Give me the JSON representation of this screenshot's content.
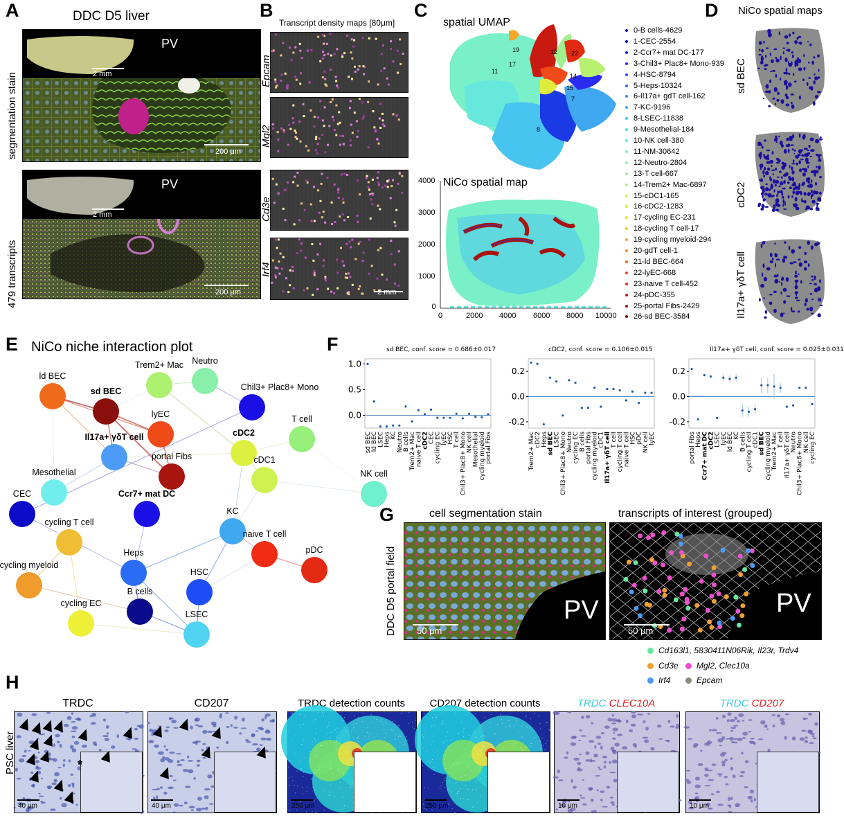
{
  "panels": {
    "A": {
      "label": "A",
      "title": "DDC D5 liver",
      "row1_label": "segmentation stain",
      "row2_label": "479 transcripts",
      "inset_scale": "2 mm",
      "main_scale": "200 μm",
      "pv": "PV"
    },
    "B": {
      "label": "B",
      "title": "Transcript density maps [80μm]",
      "genes": [
        "Epcam",
        "Mgl2",
        "Cd3e",
        "Irf4"
      ],
      "scale": "2 mm"
    },
    "C": {
      "label": "C",
      "umap_title": "spatial UMAP",
      "map_title": "NiCo spatial map",
      "yticks": [
        "4000",
        "3000",
        "2000",
        "1000",
        "0"
      ],
      "xticks": [
        "0",
        "2000",
        "4000",
        "6000",
        "8000",
        "10000"
      ],
      "cluster_numbers": [
        "19",
        "11",
        "17",
        "8",
        "12",
        "22",
        "7",
        "14",
        "15"
      ],
      "legend": [
        {
          "label": "0-B cells-4629",
          "color": "#0a0a8c"
        },
        {
          "label": "1-CEC-2554",
          "color": "#0d0dbd"
        },
        {
          "label": "2-Ccr7+ mat DC-177",
          "color": "#1a1ae6"
        },
        {
          "label": "3-Chil3+ Plac8+ Mono-939",
          "color": "#2a2af0"
        },
        {
          "label": "4-HSC-8794",
          "color": "#1e4cf5"
        },
        {
          "label": "5-Heps-10324",
          "color": "#2a6bf5"
        },
        {
          "label": "6-Il17a+ gdT cell-162",
          "color": "#3a8cf5"
        },
        {
          "label": "7-KC-9196",
          "color": "#40a8f0"
        },
        {
          "label": "8-LSEC-11838",
          "color": "#48c4f0"
        },
        {
          "label": "9-Mesothelial-184",
          "color": "#55dced"
        },
        {
          "label": "10-NK cell-380",
          "color": "#66e8dc"
        },
        {
          "label": "11-NM-30642",
          "color": "#7af0c8"
        },
        {
          "label": "12-Neutro-2804",
          "color": "#8ef2b0"
        },
        {
          "label": "13-T cell-667",
          "color": "#a0f090"
        },
        {
          "label": "14-Trem2+ Mac-6897",
          "color": "#b8f070"
        },
        {
          "label": "15-cDC1-165",
          "color": "#cdf050"
        },
        {
          "label": "16-cDC2-1283",
          "color": "#e0ec3c"
        },
        {
          "label": "17-cycling EC-231",
          "color": "#eee030"
        },
        {
          "label": "18-cycling T cell-17",
          "color": "#f2c830"
        },
        {
          "label": "19-cycling myeloid-294",
          "color": "#f4a828"
        },
        {
          "label": "20-gdT cell-1",
          "color": "#f48a22"
        },
        {
          "label": "21-ld BEC-664",
          "color": "#f0681c"
        },
        {
          "label": "22-lyEC-668",
          "color": "#ec4a16"
        },
        {
          "label": "23-naive T cell-452",
          "color": "#e02a12"
        },
        {
          "label": "24-pDC-355",
          "color": "#c81a10"
        },
        {
          "label": "25-portal Fibs-2429",
          "color": "#a8140e"
        },
        {
          "label": "26-sd BEC-3584",
          "color": "#7a0a0a"
        }
      ]
    },
    "D": {
      "label": "D",
      "title": "NiCo spatial maps",
      "rows": [
        "sd BEC",
        "cDC2",
        "Il17a+ γδT cell"
      ]
    },
    "E": {
      "label": "E",
      "title": "NiCo niche interaction plot",
      "nodes": [
        {
          "name": "ld BEC",
          "color": "#f06a1c",
          "bold": false
        },
        {
          "name": "sd BEC",
          "color": "#8a0f0c",
          "bold": true
        },
        {
          "name": "Trem2+ Mac",
          "color": "#aef070",
          "bold": false
        },
        {
          "name": "Neutro",
          "color": "#88f0a8",
          "bold": false
        },
        {
          "name": "Chil3+ Plac8+ Mono",
          "color": "#1a10e6",
          "bold": false
        },
        {
          "name": "lyEC",
          "color": "#f04a18",
          "bold": false
        },
        {
          "name": "Il17a+ γδT cell",
          "color": "#4c9cf5",
          "bold": true
        },
        {
          "name": "cDC2",
          "color": "#dcf040",
          "bold": true
        },
        {
          "name": "T cell",
          "color": "#98f07c",
          "bold": false
        },
        {
          "name": "portal Fibs",
          "color": "#a8140e",
          "bold": false
        },
        {
          "name": "Mesothelial",
          "color": "#70eded",
          "bold": false
        },
        {
          "name": "cDC1",
          "color": "#cef250",
          "bold": false
        },
        {
          "name": "CEC",
          "color": "#0c0cc8",
          "bold": false
        },
        {
          "name": "NK cell",
          "color": "#70f0cc",
          "bold": false
        },
        {
          "name": "Ccr7+ mat DC",
          "color": "#1a10e6",
          "bold": true
        },
        {
          "name": "KC",
          "color": "#40a8f0",
          "bold": false
        },
        {
          "name": "naive T cell",
          "color": "#f02c12",
          "bold": false
        },
        {
          "name": "cycling T cell",
          "color": "#f0be34",
          "bold": false
        },
        {
          "name": "pDC",
          "color": "#e42a12",
          "bold": false
        },
        {
          "name": "Heps",
          "color": "#2a6cf4",
          "bold": false
        },
        {
          "name": "cycling myeloid",
          "color": "#f09c2c",
          "bold": false
        },
        {
          "name": "HSC",
          "color": "#1e4cf5",
          "bold": false
        },
        {
          "name": "B cells",
          "color": "#0a0a8c",
          "bold": false
        },
        {
          "name": "cycling EC",
          "color": "#eef038",
          "bold": false
        },
        {
          "name": "LSEC",
          "color": "#50d4f2",
          "bold": false
        }
      ]
    },
    "F": {
      "label": "F"
    },
    "G": {
      "label": "G",
      "row_label": "DDC D5 portal field",
      "left_title": "cell segmentation stain",
      "right_title": "transcripts of interest (grouped)",
      "scale": "50 μm",
      "pv": "PV",
      "legend": [
        {
          "text": "Cd163l1, 5830411N06Rik, Il23r, Trdv4",
          "color": "#66e8a0"
        },
        {
          "text": "Cd3e",
          "color": "#f0a030"
        },
        {
          "text": "Mgl2, Clec10a",
          "color": "#f050d0"
        },
        {
          "text": "Irf4",
          "color": "#4c9cf5"
        },
        {
          "text": "Epcam",
          "color": "#8a8a78"
        }
      ]
    },
    "H": {
      "label": "H",
      "row_label": "PSC liver",
      "titles": [
        "TRDC",
        "CD207",
        "TRDC detection counts",
        "CD207 detection counts"
      ],
      "ish1": {
        "a": "TRDC",
        "b": "CLEC10A"
      },
      "ish2": {
        "a": "TRDC",
        "b": "CD207"
      },
      "scales": [
        "40 μm",
        "40 μm",
        "250 μm",
        "250 μm",
        "10 μm",
        "10 μm"
      ],
      "star": "*"
    }
  },
  "chart_data": [
    {
      "type": "scatter",
      "title": "sd BEC, conf. score = 0.686±0.017",
      "ylim": [
        -0.25,
        1.1
      ],
      "yticks": [
        1.0,
        0.5,
        0.0
      ],
      "categories": [
        "sd BEC",
        "ld BEC",
        "LSEC",
        "Heps",
        "KC",
        "Neutro",
        "B cells",
        "Trem2+ Mac",
        "naive T cell",
        "cDC2",
        "CEC",
        "cycling EC",
        "lyEC",
        "HSC",
        "T cell",
        "Chil3+ Plac8+ Mono",
        "NK cell",
        "Mesothelial",
        "cycling myeloid",
        "portal Fibs"
      ],
      "values": [
        1.0,
        0.27,
        -0.22,
        -0.22,
        -0.2,
        -0.2,
        0.17,
        -0.12,
        0.1,
        0.02,
        0.11,
        -0.05,
        -0.05,
        -0.05,
        0.03,
        -0.06,
        0.03,
        -0.03,
        -0.04,
        0.02
      ],
      "errors": [
        0,
        0,
        0,
        0,
        0,
        0,
        0,
        0,
        0,
        0,
        0,
        0,
        0,
        0,
        0,
        0,
        0,
        0,
        0,
        0
      ],
      "bold": [
        "cDC2"
      ]
    },
    {
      "type": "scatter",
      "title": "cDC2, conf. score = 0.106±0.015",
      "ylim": [
        -0.25,
        0.3
      ],
      "yticks": [
        0.2,
        0.0,
        -0.2
      ],
      "categories": [
        "Trem2+ Mac",
        "cDC2",
        "Heps",
        "sd BEC",
        "LSEC",
        "Chil3+ Plac8+ Mono",
        "Neutro",
        "cycling EC",
        "B cells",
        "portal Fibs",
        "cycling myeloid",
        "cDC1",
        "Il17a+ γδT cell",
        "T cell",
        "cycling T cell",
        "naive T cell",
        "HSC",
        "pDC",
        "NK cell",
        "lyEC"
      ],
      "values": [
        0.27,
        0.26,
        -0.22,
        0.15,
        0.12,
        -0.15,
        0.13,
        0.11,
        -0.09,
        -0.09,
        0.07,
        -0.08,
        0.06,
        0.06,
        0.05,
        -0.03,
        0.04,
        -0.05,
        0.03,
        0.03
      ],
      "errors": [
        0,
        0,
        0,
        0,
        0,
        0,
        0,
        0,
        0,
        0,
        0,
        0,
        0,
        0,
        0,
        0,
        0,
        0,
        0,
        0
      ],
      "bold": [
        "sd BEC",
        "Il17a+ γδT cell"
      ]
    },
    {
      "type": "scatter",
      "title": "Il17a+ γδT cell, conf. score = 0.025±0.031",
      "ylim": [
        -0.25,
        0.3
      ],
      "yticks": [
        0.2,
        0.0,
        -0.2
      ],
      "categories": [
        "portal Fibs",
        "Heps",
        "Ccr7+ mat DC",
        "cDC2",
        "LSEC",
        "lyEC",
        "ld BEC",
        "KC",
        "B cells",
        "cycling T cell",
        "cDC1",
        "sd BEC",
        "cycling myeloid",
        "Trem2+ Mac",
        "T cell",
        "Il17a+ γδT cell",
        "Neutro",
        "Chil3+ Plac8+ Mono",
        "NK cell",
        "cycling EC"
      ],
      "values": [
        0.22,
        -0.18,
        0.17,
        0.16,
        -0.17,
        0.15,
        0.14,
        0.15,
        -0.11,
        -0.12,
        -0.1,
        0.09,
        0.09,
        0.08,
        0.07,
        -0.08,
        -0.07,
        0.07,
        0.07,
        -0.06
      ],
      "errors": [
        0,
        0,
        0,
        0,
        0,
        0.03,
        0.03,
        0.03,
        0.05,
        0.04,
        0.04,
        0.06,
        0.06,
        0.1,
        0.04,
        0,
        0,
        0,
        0,
        0
      ],
      "bold": [
        "Ccr7+ mat DC",
        "cDC2",
        "sd BEC"
      ]
    }
  ]
}
